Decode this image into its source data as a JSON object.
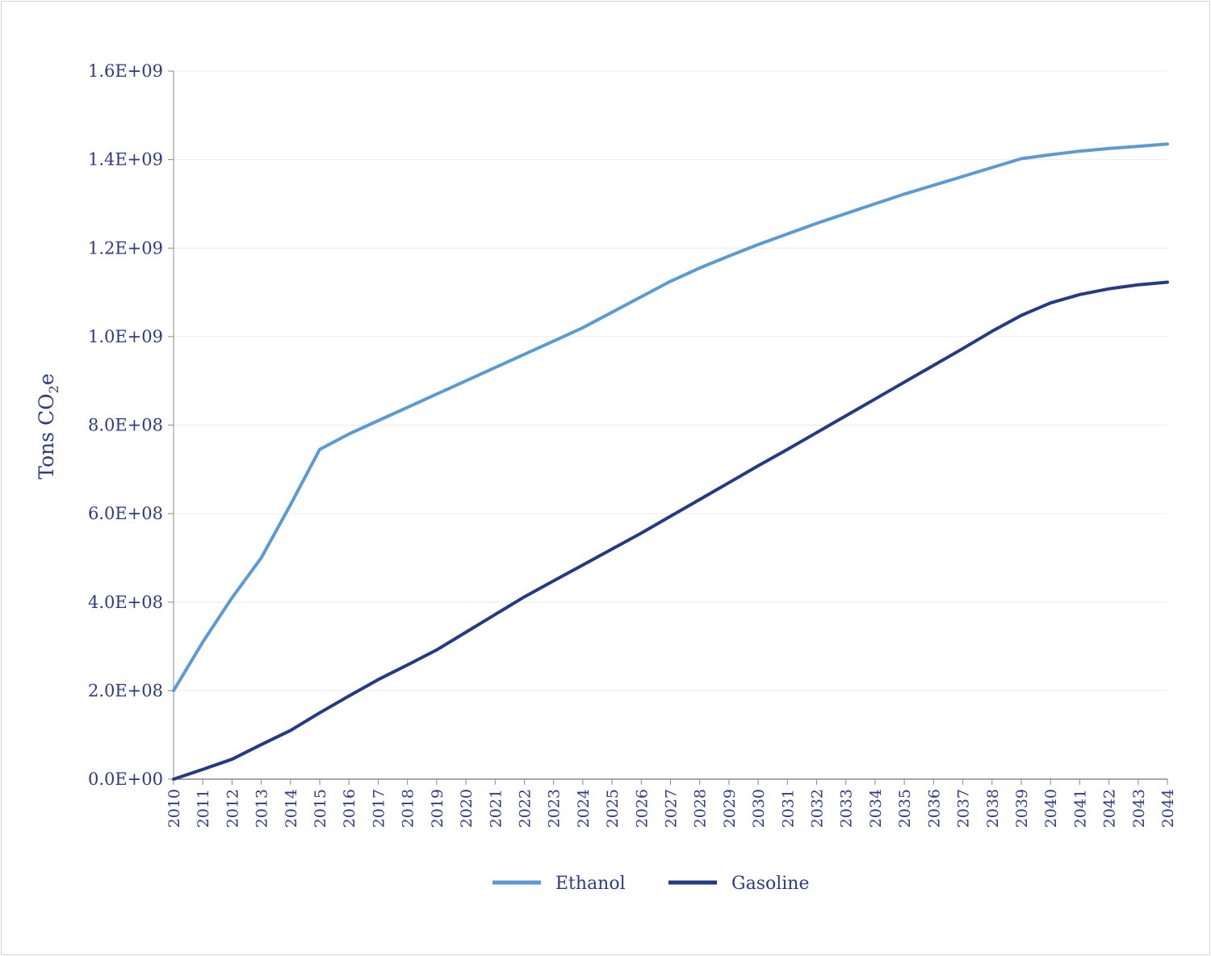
{
  "chart_data": {
    "type": "line",
    "ylabel": "Tons CO",
    "ylabel_sub": "2",
    "ylabel_suffix": "e",
    "xlabel": "",
    "ylim": [
      0,
      1600000000
    ],
    "grid": true,
    "legend_position": "bottom",
    "x": [
      "2010",
      "2011",
      "2012",
      "2013",
      "2014",
      "2015",
      "2016",
      "2017",
      "2018",
      "2019",
      "2020",
      "2021",
      "2022",
      "2023",
      "2024",
      "2025",
      "2026",
      "2027",
      "2028",
      "2029",
      "2030",
      "2031",
      "2032",
      "2033",
      "2034",
      "2035",
      "2036",
      "2037",
      "2038",
      "2039",
      "2040",
      "2041",
      "2042",
      "2043",
      "2044"
    ],
    "y_ticks": [
      {
        "value": 0,
        "label": "0.0E+00"
      },
      {
        "value": 200000000,
        "label": "2.0E+08"
      },
      {
        "value": 400000000,
        "label": "4.0E+08"
      },
      {
        "value": 600000000,
        "label": "6.0E+08"
      },
      {
        "value": 800000000,
        "label": "8.0E+08"
      },
      {
        "value": 1000000000,
        "label": "1.0E+09"
      },
      {
        "value": 1200000000,
        "label": "1.2E+09"
      },
      {
        "value": 1400000000,
        "label": "1.4E+09"
      },
      {
        "value": 1600000000,
        "label": "1.6E+09"
      }
    ],
    "series": [
      {
        "name": "Ethanol",
        "color": "#5b9bd5",
        "values": [
          200000000,
          310000000,
          410000000,
          500000000,
          620000000,
          745000000,
          780000000,
          810000000,
          840000000,
          870000000,
          900000000,
          930000000,
          960000000,
          990000000,
          1020000000,
          1055000000,
          1090000000,
          1125000000,
          1155000000,
          1182000000,
          1208000000,
          1232000000,
          1256000000,
          1278000000,
          1300000000,
          1322000000,
          1342000000,
          1362000000,
          1382000000,
          1402000000,
          1411000000,
          1419000000,
          1425000000,
          1430000000,
          1435000000
        ]
      },
      {
        "name": "Gasoline",
        "color": "#243a85",
        "values": [
          0,
          22000000,
          45000000,
          78000000,
          110000000,
          150000000,
          188000000,
          225000000,
          258000000,
          292000000,
          332000000,
          372000000,
          412000000,
          448000000,
          484000000,
          520000000,
          556000000,
          594000000,
          632000000,
          670000000,
          708000000,
          745000000,
          783000000,
          821000000,
          859000000,
          897000000,
          935000000,
          973000000,
          1012000000,
          1048000000,
          1076000000,
          1095000000,
          1108000000,
          1117000000,
          1123000000
        ]
      }
    ]
  }
}
